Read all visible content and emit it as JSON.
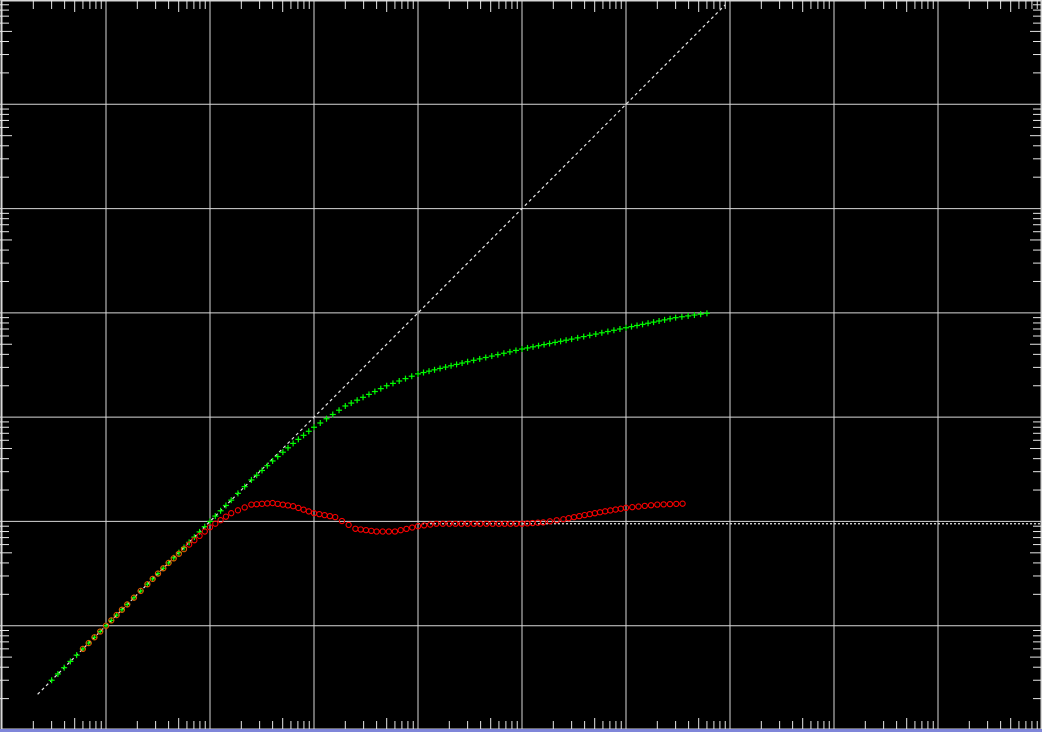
{
  "colors": {
    "background": "#000000",
    "grid": "#d8d8d8",
    "tick": "#e6e6e6",
    "reference_line": "#e6e6e6",
    "series_plus": "#00ff00",
    "series_circle": "#ff0000",
    "series_circle_early": "#e05a00",
    "bottom_rule": "#7f86d9"
  },
  "chart_data": {
    "type": "scatter",
    "title": "",
    "xlabel": "",
    "ylabel": "",
    "x_scale": "log",
    "y_scale": "log",
    "xlim": [
      1,
      10000000000
    ],
    "ylim": [
      1,
      10000000
    ],
    "grid": true,
    "legend": "none",
    "reference_lines": [
      {
        "kind": "diagonal",
        "description": "y = x",
        "style": "dotted"
      },
      {
        "kind": "horizontal",
        "y": 95,
        "x_from": 10000,
        "x_to": 10000000000,
        "style": "dotted"
      }
    ],
    "series": [
      {
        "marker": "plus",
        "color": "#00ff00",
        "x": [
          3.0,
          6.0,
          10,
          16,
          25,
          40,
          63,
          100,
          160,
          250,
          400,
          630,
          1000,
          2000,
          5000,
          10000,
          30000,
          100000,
          300000,
          1000000,
          3000000,
          6000000
        ],
        "y": [
          3.0,
          6.0,
          10,
          16,
          25,
          40,
          63,
          100,
          160,
          250,
          380,
          560,
          800,
          1280,
          2000,
          2600,
          3400,
          4500,
          5600,
          7200,
          9000,
          9900
        ]
      },
      {
        "marker": "circle",
        "color": "#ff0000",
        "x": [
          6.0,
          10,
          16,
          25,
          40,
          63,
          100,
          160,
          250,
          400,
          630,
          1000,
          1600,
          2500,
          4000,
          6000,
          10000,
          15000,
          20000,
          30000,
          60000,
          100000,
          160000,
          250000,
          400000,
          630000,
          1000000,
          2000000,
          3500000
        ],
        "y": [
          6.0,
          10,
          16,
          25,
          40,
          60,
          88,
          120,
          145,
          150,
          140,
          120,
          110,
          85,
          80,
          80,
          90,
          95,
          95,
          95,
          95,
          95,
          98,
          105,
          115,
          125,
          135,
          145,
          148
        ]
      }
    ]
  }
}
